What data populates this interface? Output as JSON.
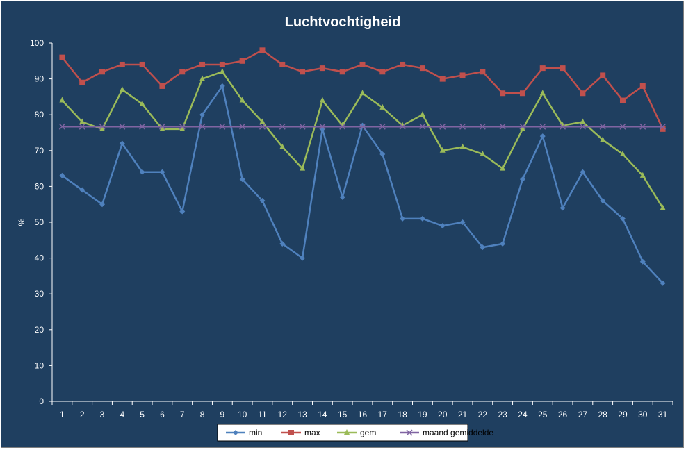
{
  "chart_data": {
    "type": "line",
    "title": "Luchtvochtigheid",
    "xlabel": "",
    "ylabel": "%",
    "ylim": [
      0,
      100
    ],
    "yticks": [
      "0",
      "10",
      "20",
      "30",
      "40",
      "50",
      "60",
      "70",
      "80",
      "90",
      "100"
    ],
    "categories": [
      "1",
      "2",
      "3",
      "4",
      "5",
      "6",
      "7",
      "8",
      "9",
      "10",
      "11",
      "12",
      "13",
      "14",
      "15",
      "16",
      "17",
      "18",
      "19",
      "20",
      "21",
      "22",
      "23",
      "24",
      "25",
      "26",
      "27",
      "28",
      "29",
      "30",
      "31"
    ],
    "grid": false,
    "legend_position": "bottom",
    "background_color": "#1f3f60",
    "series": [
      {
        "name": "min",
        "color": "#4f81bd",
        "marker": "diamond",
        "values": [
          63,
          59,
          55,
          72,
          64,
          64,
          53,
          80,
          88,
          62,
          56,
          44,
          40,
          76,
          57,
          77,
          69,
          51,
          51,
          49,
          50,
          43,
          44,
          62,
          74,
          54,
          64,
          56,
          51,
          39,
          33
        ]
      },
      {
        "name": "max",
        "color": "#c0504d",
        "marker": "square",
        "values": [
          96,
          89,
          92,
          94,
          94,
          88,
          92,
          94,
          94,
          95,
          98,
          94,
          92,
          93,
          92,
          94,
          92,
          94,
          93,
          90,
          91,
          92,
          86,
          86,
          93,
          93,
          86,
          91,
          84,
          88,
          76
        ]
      },
      {
        "name": "gem",
        "color": "#9bbb59",
        "marker": "triangle",
        "values": [
          84,
          78,
          76,
          87,
          83,
          76,
          76,
          90,
          92,
          84,
          78,
          71,
          65,
          84,
          77,
          86,
          82,
          77,
          80,
          70,
          71,
          69,
          65,
          76,
          86,
          77,
          78,
          73,
          69,
          63,
          54
        ]
      },
      {
        "name": "maand gemiddelde",
        "color": "#8064a2",
        "marker": "x",
        "values": [
          76.7,
          76.7,
          76.7,
          76.7,
          76.7,
          76.7,
          76.7,
          76.7,
          76.7,
          76.7,
          76.7,
          76.7,
          76.7,
          76.7,
          76.7,
          76.7,
          76.7,
          76.7,
          76.7,
          76.7,
          76.7,
          76.7,
          76.7,
          76.7,
          76.7,
          76.7,
          76.7,
          76.7,
          76.7,
          76.7,
          76.7
        ]
      }
    ]
  }
}
